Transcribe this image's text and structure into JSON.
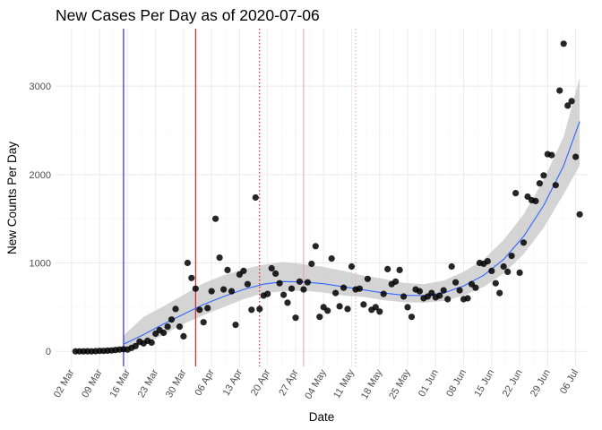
{
  "chart_data": {
    "type": "scatter",
    "title": "New Cases Per Day as of 2020-07-06",
    "xlabel": "Date",
    "ylabel": "New Counts Per Day",
    "x_axis": {
      "type": "date",
      "range": [
        "2020-02-27",
        "2020-07-09"
      ],
      "ticks": [
        "2020-03-02",
        "2020-03-09",
        "2020-03-16",
        "2020-03-23",
        "2020-03-30",
        "2020-04-06",
        "2020-04-13",
        "2020-04-20",
        "2020-04-27",
        "2020-05-04",
        "2020-05-11",
        "2020-05-18",
        "2020-05-25",
        "2020-06-01",
        "2020-06-08",
        "2020-06-15",
        "2020-06-22",
        "2020-06-29",
        "2020-07-06"
      ],
      "tick_labels": [
        "02 Mar",
        "09 Mar",
        "16 Mar",
        "23 Mar",
        "30 Mar",
        "06 Apr",
        "13 Apr",
        "20 Apr",
        "27 Apr",
        "04 May",
        "11 May",
        "18 May",
        "25 May",
        "01 Jun",
        "08 Jun",
        "15 Jun",
        "22 Jun",
        "29 Jun",
        "06 Jul"
      ]
    },
    "y_axis": {
      "range": [
        -170,
        3650
      ],
      "ticks": [
        0,
        1000,
        2000,
        3000
      ],
      "tick_labels": [
        "0",
        "1000",
        "2000",
        "3000"
      ]
    },
    "grid": true,
    "legend": "none",
    "colors": {
      "points": "#000000",
      "smooth_line": "#3366FF",
      "confidence_band": "#cccccc",
      "grid_major": "#ebebeb",
      "grid_minor": "#f5f5f5"
    },
    "reference_lines": [
      {
        "x": "2020-03-15",
        "color": "#0000ff",
        "style": "solid"
      },
      {
        "x": "2020-04-02",
        "color": "#cc0000",
        "style": "solid"
      },
      {
        "x": "2020-04-18",
        "color": "#cc0000",
        "style": "dotted"
      },
      {
        "x": "2020-04-29",
        "color": "#e8a0a0",
        "style": "solid"
      },
      {
        "x": "2020-05-12",
        "color": "#e8a0a0",
        "style": "dotted"
      }
    ],
    "points": [
      [
        "2020-03-03",
        0
      ],
      [
        "2020-03-04",
        0
      ],
      [
        "2020-03-05",
        0
      ],
      [
        "2020-03-06",
        1
      ],
      [
        "2020-03-07",
        0
      ],
      [
        "2020-03-08",
        2
      ],
      [
        "2020-03-09",
        5
      ],
      [
        "2020-03-10",
        5
      ],
      [
        "2020-03-11",
        8
      ],
      [
        "2020-03-12",
        10
      ],
      [
        "2020-03-13",
        15
      ],
      [
        "2020-03-14",
        20
      ],
      [
        "2020-03-15",
        25
      ],
      [
        "2020-03-16",
        20
      ],
      [
        "2020-03-17",
        40
      ],
      [
        "2020-03-18",
        60
      ],
      [
        "2020-03-19",
        110
      ],
      [
        "2020-03-20",
        90
      ],
      [
        "2020-03-21",
        120
      ],
      [
        "2020-03-22",
        100
      ],
      [
        "2020-03-23",
        200
      ],
      [
        "2020-03-24",
        240
      ],
      [
        "2020-03-25",
        210
      ],
      [
        "2020-03-26",
        280
      ],
      [
        "2020-03-27",
        360
      ],
      [
        "2020-03-28",
        480
      ],
      [
        "2020-03-29",
        280
      ],
      [
        "2020-03-30",
        170
      ],
      [
        "2020-03-31",
        1000
      ],
      [
        "2020-04-01",
        830
      ],
      [
        "2020-04-02",
        710
      ],
      [
        "2020-04-03",
        470
      ],
      [
        "2020-04-04",
        330
      ],
      [
        "2020-04-05",
        490
      ],
      [
        "2020-04-06",
        680
      ],
      [
        "2020-04-07",
        1500
      ],
      [
        "2020-04-08",
        1060
      ],
      [
        "2020-04-09",
        700
      ],
      [
        "2020-04-10",
        920
      ],
      [
        "2020-04-11",
        680
      ],
      [
        "2020-04-12",
        300
      ],
      [
        "2020-04-13",
        870
      ],
      [
        "2020-04-14",
        910
      ],
      [
        "2020-04-15",
        760
      ],
      [
        "2020-04-16",
        470
      ],
      [
        "2020-04-17",
        1740
      ],
      [
        "2020-04-18",
        480
      ],
      [
        "2020-04-19",
        630
      ],
      [
        "2020-04-20",
        650
      ],
      [
        "2020-04-21",
        940
      ],
      [
        "2020-04-22",
        880
      ],
      [
        "2020-04-23",
        770
      ],
      [
        "2020-04-24",
        640
      ],
      [
        "2020-04-25",
        550
      ],
      [
        "2020-04-26",
        710
      ],
      [
        "2020-04-27",
        380
      ],
      [
        "2020-04-28",
        790
      ],
      [
        "2020-04-29",
        700
      ],
      [
        "2020-04-30",
        780
      ],
      [
        "2020-05-01",
        990
      ],
      [
        "2020-05-02",
        1190
      ],
      [
        "2020-05-03",
        390
      ],
      [
        "2020-05-04",
        500
      ],
      [
        "2020-05-05",
        460
      ],
      [
        "2020-05-06",
        1050
      ],
      [
        "2020-05-07",
        660
      ],
      [
        "2020-05-08",
        510
      ],
      [
        "2020-05-09",
        720
      ],
      [
        "2020-05-10",
        480
      ],
      [
        "2020-05-11",
        960
      ],
      [
        "2020-05-12",
        700
      ],
      [
        "2020-05-13",
        710
      ],
      [
        "2020-05-14",
        530
      ],
      [
        "2020-05-15",
        820
      ],
      [
        "2020-05-16",
        470
      ],
      [
        "2020-05-17",
        500
      ],
      [
        "2020-05-18",
        450
      ],
      [
        "2020-05-19",
        650
      ],
      [
        "2020-05-20",
        930
      ],
      [
        "2020-05-21",
        760
      ],
      [
        "2020-05-22",
        790
      ],
      [
        "2020-05-23",
        920
      ],
      [
        "2020-05-24",
        620
      ],
      [
        "2020-05-25",
        500
      ],
      [
        "2020-05-26",
        390
      ],
      [
        "2020-05-27",
        700
      ],
      [
        "2020-05-28",
        680
      ],
      [
        "2020-05-29",
        600
      ],
      [
        "2020-05-30",
        620
      ],
      [
        "2020-05-31",
        660
      ],
      [
        "2020-06-01",
        610
      ],
      [
        "2020-06-02",
        630
      ],
      [
        "2020-06-03",
        690
      ],
      [
        "2020-06-04",
        590
      ],
      [
        "2020-06-05",
        960
      ],
      [
        "2020-06-06",
        780
      ],
      [
        "2020-06-07",
        690
      ],
      [
        "2020-06-08",
        590
      ],
      [
        "2020-06-09",
        600
      ],
      [
        "2020-06-10",
        760
      ],
      [
        "2020-06-11",
        720
      ],
      [
        "2020-06-12",
        1000
      ],
      [
        "2020-06-13",
        990
      ],
      [
        "2020-06-14",
        1020
      ],
      [
        "2020-06-15",
        910
      ],
      [
        "2020-06-16",
        770
      ],
      [
        "2020-06-17",
        660
      ],
      [
        "2020-06-18",
        960
      ],
      [
        "2020-06-19",
        900
      ],
      [
        "2020-06-20",
        1080
      ],
      [
        "2020-06-21",
        1790
      ],
      [
        "2020-06-22",
        890
      ],
      [
        "2020-06-23",
        1230
      ],
      [
        "2020-06-24",
        1750
      ],
      [
        "2020-06-25",
        1710
      ],
      [
        "2020-06-26",
        1700
      ],
      [
        "2020-06-27",
        1900
      ],
      [
        "2020-06-28",
        1990
      ],
      [
        "2020-06-29",
        2230
      ],
      [
        "2020-06-30",
        2220
      ],
      [
        "2020-07-01",
        1880
      ],
      [
        "2020-07-02",
        2950
      ],
      [
        "2020-07-03",
        3480
      ],
      [
        "2020-07-04",
        2780
      ],
      [
        "2020-07-05",
        2830
      ],
      [
        "2020-07-06",
        2200
      ],
      [
        "2020-07-07",
        1550
      ]
    ],
    "smooth": [
      [
        "2020-03-15",
        80
      ],
      [
        "2020-03-20",
        190
      ],
      [
        "2020-03-25",
        310
      ],
      [
        "2020-03-30",
        420
      ],
      [
        "2020-04-04",
        530
      ],
      [
        "2020-04-09",
        620
      ],
      [
        "2020-04-14",
        700
      ],
      [
        "2020-04-19",
        760
      ],
      [
        "2020-04-24",
        790
      ],
      [
        "2020-04-29",
        785
      ],
      [
        "2020-05-04",
        765
      ],
      [
        "2020-05-09",
        730
      ],
      [
        "2020-05-14",
        695
      ],
      [
        "2020-05-19",
        660
      ],
      [
        "2020-05-24",
        635
      ],
      [
        "2020-05-29",
        630
      ],
      [
        "2020-06-03",
        660
      ],
      [
        "2020-06-08",
        740
      ],
      [
        "2020-06-13",
        860
      ],
      [
        "2020-06-18",
        1040
      ],
      [
        "2020-06-23",
        1300
      ],
      [
        "2020-06-28",
        1650
      ],
      [
        "2020-07-03",
        2100
      ],
      [
        "2020-07-07",
        2600
      ]
    ],
    "band": [
      [
        100,
        50
      ],
      [
        200,
        120
      ],
      [
        200,
        120
      ],
      [
        220,
        110
      ],
      [
        240,
        120
      ],
      [
        240,
        120
      ],
      [
        230,
        110
      ],
      [
        220,
        100
      ],
      [
        220,
        110
      ],
      [
        200,
        100
      ],
      [
        190,
        100
      ],
      [
        180,
        100
      ],
      [
        160,
        80
      ],
      [
        160,
        80
      ],
      [
        140,
        80
      ],
      [
        130,
        80
      ],
      [
        140,
        90
      ],
      [
        160,
        110
      ],
      [
        180,
        130
      ],
      [
        220,
        160
      ],
      [
        250,
        200
      ],
      [
        290,
        250
      ],
      [
        330,
        320
      ],
      [
        500,
        500
      ]
    ]
  }
}
